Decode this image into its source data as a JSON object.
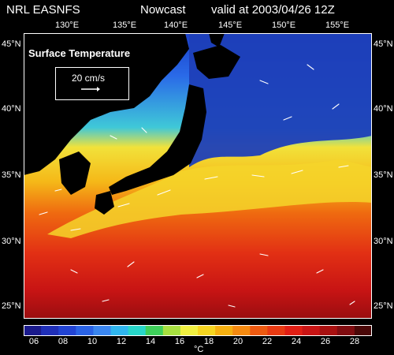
{
  "header": {
    "source": "NRL EASNFS",
    "product": "Nowcast",
    "valid": "valid at 2003/04/26 12Z"
  },
  "map": {
    "title": "Surface Temperature",
    "reference_vector_label": "20 cm/s",
    "longitudes": [
      "130°E",
      "135°E",
      "140°E",
      "145°E",
      "150°E",
      "155°E"
    ],
    "latitudes": [
      "45°N",
      "40°N",
      "35°N",
      "30°N",
      "25°N"
    ],
    "land_color": "#000000",
    "vector_color": "#ffffff"
  },
  "colorbar": {
    "labels": [
      "06",
      "08",
      "10",
      "12",
      "14",
      "16",
      "18",
      "20",
      "22",
      "24",
      "26",
      "28"
    ],
    "unit": "°C",
    "colors": [
      "#1a1a8c",
      "#1f2fb8",
      "#2244d4",
      "#2a63e6",
      "#3a86f0",
      "#2fb6ef",
      "#27d6c9",
      "#3ecf5a",
      "#a7e040",
      "#f0f040",
      "#f5d520",
      "#f5b010",
      "#f58a10",
      "#ee5a10",
      "#e83a12",
      "#e01e14",
      "#c81414",
      "#a81010",
      "#800c10",
      "#4a0808"
    ]
  }
}
